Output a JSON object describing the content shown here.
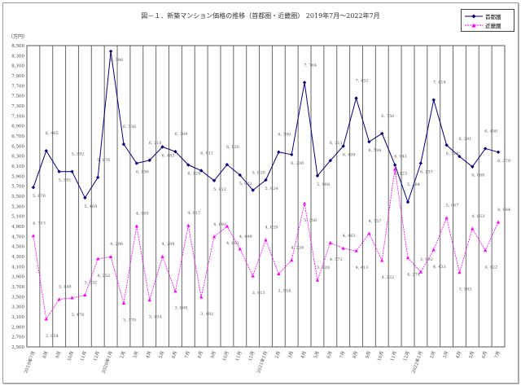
{
  "title": "図－１．新築マンション価格の推移（首都圏・近畿圏） 2019年7月～2022年7月",
  "unit": "（万円）",
  "colors": {
    "tokyo": "#000080",
    "kansai": "#ff00ff"
  },
  "chart_data": {
    "type": "line",
    "title": "図－１．新築マンション価格の推移（首都圏・近畿圏） 2019年7月～2022年7月",
    "ylabel": "（万円）",
    "ylim": [
      2500,
      8500
    ],
    "yticks": [
      "2,500",
      "2,700",
      "2,900",
      "3,100",
      "3,300",
      "3,500",
      "3,700",
      "3,900",
      "4,100",
      "4,300",
      "4,500",
      "4,700",
      "4,900",
      "5,100",
      "5,300",
      "5,500",
      "5,700",
      "5,900",
      "6,100",
      "6,300",
      "6,500",
      "6,700",
      "6,900",
      "7,100",
      "7,300",
      "7,500",
      "7,700",
      "7,900",
      "8,100",
      "8,300",
      "8,500"
    ],
    "categories": [
      "2019年7月",
      "8月",
      "9月",
      "10月",
      "11月",
      "12月",
      "2020年1月",
      "2月",
      "3月",
      "4月",
      "5月",
      "6月",
      "7月",
      "8月",
      "9月",
      "10月",
      "11月",
      "12月",
      "2021年1月",
      "2月",
      "3月",
      "4月",
      "5月",
      "6月",
      "7月",
      "8月",
      "9月",
      "10月",
      "11月",
      "12月",
      "2022年1月",
      "2月",
      "3月",
      "4月",
      "5月",
      "6月",
      "7月"
    ],
    "legend": "top-right",
    "series": [
      {
        "name": "首都圏",
        "values": [
          5676,
          6405,
          5991,
          5992,
          5469,
          5876,
          8386,
          6536,
          6156,
          6216,
          6483,
          6389,
          6124,
          6011,
          5812,
          6130,
          5922,
          5620,
          5824,
          6380,
          6330,
          7764,
          5908,
          6211,
          6499,
          7452,
          6584,
          6750,
          6123,
          5384,
          6157,
          7418,
          6519,
          6291,
          6088,
          6450,
          6379
        ]
      },
      {
        "name": "近畿圏",
        "values": [
          4713,
          3054,
          3448,
          3476,
          3532,
          4253,
          4296,
          3370,
          4905,
          3434,
          4298,
          3608,
          4917,
          3492,
          4693,
          4901,
          4449,
          3913,
          4629,
          3954,
          4226,
          5356,
          3828,
          4572,
          4463,
          4413,
          4757,
          4222,
          6041,
          4274,
          3992,
          4433,
          5067,
          3983,
          4853,
          4422,
          4984
        ]
      }
    ]
  }
}
